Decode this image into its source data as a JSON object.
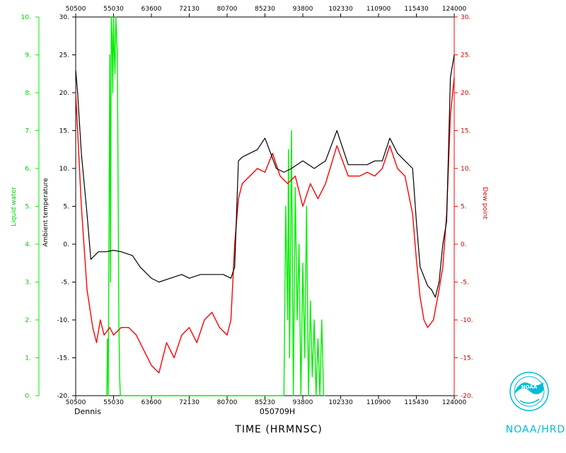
{
  "chart_data": {
    "type": "line",
    "title": "",
    "storm_name": "Dennis",
    "flight_id": "050709H",
    "xlabel": "TIME (HRMNSC)",
    "ylabel_left_outer": "Liquid water",
    "ylabel_left_inner": "Ambient temperature",
    "ylabel_right": "Dew point",
    "agency": "NOAA/HRD",
    "logo_text": "NOAA",
    "x_ticks": [
      "50500",
      "55030",
      "63600",
      "72130",
      "80700",
      "85230",
      "93800",
      "102330",
      "110900",
      "115430",
      "124000"
    ],
    "xlim": [
      0,
      10
    ],
    "ylim_temperature": [
      -20,
      30
    ],
    "y_ticks_temperature": [
      "-20.",
      "-15.",
      "-10.",
      "-5.",
      "0.",
      "5.",
      "10.",
      "15.",
      "20.",
      "25.",
      "30."
    ],
    "ylim_liquid_water": [
      0,
      10
    ],
    "y_ticks_liquid_water": [
      "0.",
      "1.",
      "2.",
      "3.",
      "4.",
      "5.",
      "6.",
      "7.",
      "8.",
      "9.",
      "10."
    ],
    "ylim_dew_point": [
      -20,
      30
    ],
    "y_ticks_dew_point": [
      "-20.",
      "-15.",
      "-10.",
      "-5.",
      "0.",
      "5.",
      "10.",
      "15.",
      "20.",
      "25.",
      "30."
    ],
    "colors": {
      "temperature": "#000000",
      "dew_point": "#ff0000",
      "liquid_water": "#00ee00",
      "agency": "#00bcd4"
    },
    "series": [
      {
        "key": "temperature",
        "axis": "temperature",
        "x": [
          0,
          0.05,
          0.15,
          0.3,
          0.4,
          0.5,
          0.6,
          0.8,
          1.0,
          1.2,
          1.5,
          1.7,
          2.0,
          2.2,
          2.5,
          2.8,
          3.0,
          3.3,
          3.6,
          3.9,
          4.1,
          4.2,
          4.3,
          4.4,
          4.6,
          4.8,
          5.0,
          5.3,
          5.5,
          5.7,
          6.0,
          6.3,
          6.6,
          6.9,
          7.2,
          7.5,
          7.7,
          7.9,
          8.1,
          8.3,
          8.5,
          8.7,
          8.9,
          9.0,
          9.1,
          9.3,
          9.4,
          9.5,
          9.6,
          9.7,
          9.8,
          9.9,
          10.0
        ],
        "y": [
          23,
          20,
          12,
          4,
          -2,
          -1.5,
          -1,
          -1,
          -0.8,
          -1,
          -1.5,
          -3,
          -4.5,
          -5,
          -4.5,
          -4,
          -4.5,
          -4,
          -4,
          -4,
          -4.5,
          -3,
          11,
          11.5,
          12,
          12.5,
          14,
          10,
          9.5,
          10,
          11,
          10,
          11,
          15,
          10.5,
          10.5,
          10.5,
          11,
          11,
          14,
          12,
          11,
          10,
          3,
          -3,
          -5.5,
          -6,
          -7,
          -5,
          0,
          3,
          22,
          25
        ]
      },
      {
        "key": "dew_point",
        "axis": "dew_point",
        "x": [
          0,
          0.05,
          0.15,
          0.3,
          0.45,
          0.55,
          0.65,
          0.75,
          0.9,
          1.0,
          1.2,
          1.4,
          1.6,
          1.8,
          2.0,
          2.2,
          2.4,
          2.6,
          2.8,
          3.0,
          3.2,
          3.4,
          3.6,
          3.8,
          4.0,
          4.1,
          4.2,
          4.3,
          4.4,
          4.6,
          4.8,
          5.0,
          5.2,
          5.4,
          5.6,
          5.8,
          6.0,
          6.2,
          6.4,
          6.6,
          6.9,
          7.2,
          7.5,
          7.7,
          7.9,
          8.1,
          8.3,
          8.5,
          8.7,
          8.9,
          9.0,
          9.1,
          9.2,
          9.3,
          9.45,
          9.6,
          9.7,
          9.8,
          9.9,
          10.0
        ],
        "y": [
          20,
          15,
          5,
          -6,
          -11,
          -13,
          -10,
          -12,
          -11,
          -12,
          -11,
          -11,
          -12,
          -14,
          -16,
          -17,
          -13,
          -15,
          -12,
          -11,
          -13,
          -10,
          -9,
          -11,
          -12,
          -10,
          0,
          6,
          8,
          9,
          10,
          9.5,
          12,
          9,
          8,
          9,
          5,
          8,
          6,
          8,
          13,
          9,
          9,
          9.5,
          9,
          10,
          13,
          10,
          9,
          4,
          -2,
          -7,
          -10,
          -11,
          -10,
          -6,
          -3,
          4,
          17,
          22
        ]
      },
      {
        "key": "liquid_water",
        "axis": "liquid_water",
        "x": [
          0.82,
          0.84,
          0.86,
          0.9,
          0.92,
          0.94,
          0.96,
          0.98,
          1.0,
          1.02,
          1.04,
          1.06,
          1.1,
          1.14,
          1.16,
          1.18,
          5.5,
          5.55,
          5.6,
          5.62,
          5.65,
          5.7,
          5.75,
          5.8,
          5.85,
          5.9,
          5.95,
          6.0,
          6.05,
          6.1,
          6.15,
          6.2,
          6.25,
          6.3,
          6.35,
          6.4,
          6.45,
          6.5,
          6.55,
          6.6
        ],
        "y": [
          0,
          1.5,
          0,
          9,
          3,
          10,
          9.5,
          8,
          10,
          9,
          8.5,
          10,
          9,
          2,
          0.5,
          0,
          0,
          5,
          2,
          6.5,
          1,
          7,
          0,
          5.5,
          2,
          4,
          0,
          3.5,
          1,
          5,
          0,
          2.5,
          0.5,
          2,
          0,
          1.5,
          0,
          2,
          0,
          0
        ]
      }
    ]
  }
}
